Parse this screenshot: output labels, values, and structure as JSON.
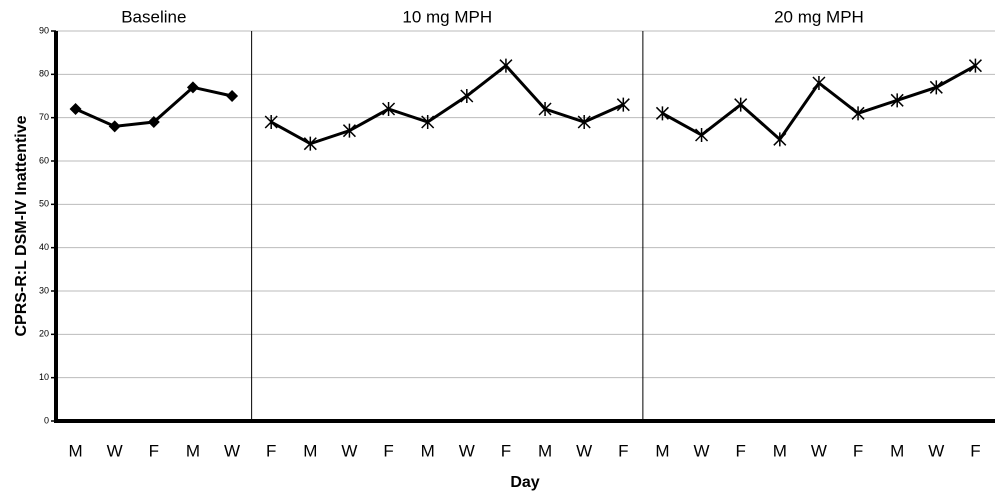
{
  "chart_data": {
    "type": "line",
    "ylabel": "CPRS-R:L DSM-IV Inattentive",
    "xlabel": "Day",
    "categories": [
      "M",
      "W",
      "F",
      "M",
      "W",
      "F",
      "M",
      "W",
      "F",
      "M",
      "W",
      "F",
      "M",
      "W",
      "F",
      "M",
      "W",
      "F",
      "M",
      "W",
      "F",
      "M",
      "W",
      "F"
    ],
    "series": [
      {
        "name": "Baseline",
        "color": "#000000",
        "marker": "diamond",
        "values": [
          72,
          68,
          69,
          77,
          75,
          null,
          null,
          null,
          null,
          null,
          null,
          null,
          null,
          null,
          null,
          null,
          null,
          null,
          null,
          null,
          null,
          null,
          null,
          null
        ]
      },
      {
        "name": "10 mg MPH",
        "color": "#000000",
        "marker": "asterisk",
        "values": [
          null,
          null,
          null,
          null,
          null,
          69,
          64,
          67,
          72,
          69,
          75,
          82,
          72,
          69,
          73,
          null,
          null,
          null,
          null,
          null,
          null,
          null,
          null,
          null
        ]
      },
      {
        "name": "20 mg MPH",
        "color": "#000000",
        "marker": "asterisk",
        "values": [
          null,
          null,
          null,
          null,
          null,
          null,
          null,
          null,
          null,
          null,
          null,
          null,
          null,
          null,
          null,
          71,
          66,
          73,
          65,
          78,
          71,
          74,
          77,
          82
        ]
      }
    ],
    "ylim": [
      0,
      90
    ],
    "yticks": [
      0,
      10,
      20,
      30,
      40,
      50,
      60,
      70,
      80,
      90
    ],
    "grid": true
  }
}
